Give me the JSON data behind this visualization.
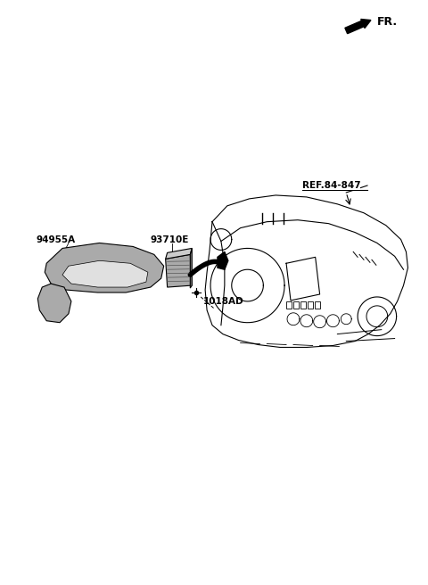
{
  "background_color": "#ffffff",
  "line_color": "#000000",
  "gray_dark": "#888888",
  "gray_mid": "#aaaaaa",
  "gray_light": "#cccccc",
  "fig_width": 4.8,
  "fig_height": 6.56,
  "dpi": 100,
  "fr_label": "FR.",
  "ref_label": "REF.84-847",
  "label_94955A": "94955A",
  "label_93710E": "93710E",
  "label_1018AD": "1018AD"
}
